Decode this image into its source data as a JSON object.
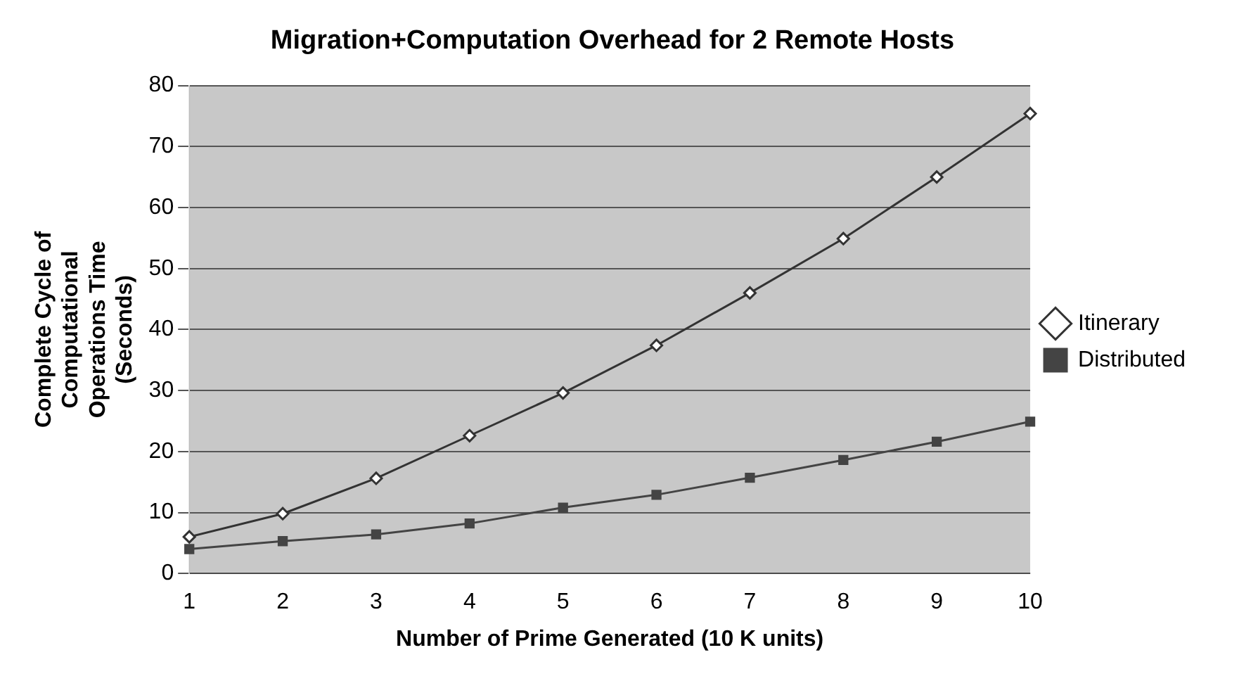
{
  "chart_data": {
    "type": "line",
    "title": "Migration+Computation Overhead for 2 Remote Hosts",
    "xlabel": "Number of Prime Generated (10 K units)",
    "ylabel": "Complete Cycle of Computational Operations Time (Seconds)",
    "categories": [
      "1",
      "2",
      "3",
      "4",
      "5",
      "6",
      "7",
      "8",
      "9",
      "10"
    ],
    "series": [
      {
        "name": "Itinerary",
        "color": "#333333",
        "marker": "diamond",
        "values": [
          6,
          9.8,
          15.6,
          22.6,
          29.6,
          37.4,
          46,
          54.9,
          65,
          75.4
        ]
      },
      {
        "name": "Distributed",
        "color": "#444444",
        "marker": "square",
        "values": [
          4,
          5.3,
          6.4,
          8.2,
          10.8,
          12.9,
          15.7,
          18.6,
          21.6,
          24.9
        ]
      }
    ],
    "ylim": [
      0,
      80
    ],
    "yticks": [
      0,
      10,
      20,
      30,
      40,
      50,
      60,
      70,
      80
    ],
    "grid": "y",
    "legend": "right"
  }
}
